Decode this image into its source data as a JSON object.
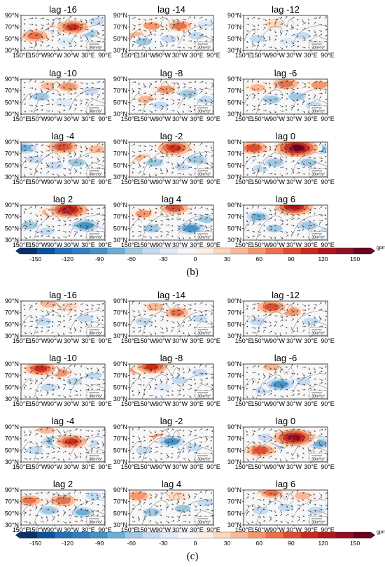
{
  "colorbar": {
    "ticks": [
      "-150",
      "-120",
      "-90",
      "-60",
      "-30",
      "0",
      "30",
      "60",
      "90",
      "120",
      "150"
    ],
    "unit": "gpm",
    "colors": [
      "#08306b",
      "#08519c",
      "#2171b5",
      "#2f7fc1",
      "#4292c6",
      "#6baed6",
      "#9ecae1",
      "#c6dbef",
      "#deebf7",
      "#f4f7fb",
      "#fdeee4",
      "#fcd6bd",
      "#f9b896",
      "#f4976b",
      "#ea7048",
      "#dd4b31",
      "#cb2a1f",
      "#b0171b",
      "#901024",
      "#67001f"
    ]
  },
  "panel_labels": [
    "(b)",
    "(c)"
  ],
  "reference_vector": "30m²/s²",
  "panels": [
    {
      "label": "(b)",
      "maps": [
        {
          "title": "lag -16"
        },
        {
          "title": "lag -14"
        },
        {
          "title": "lag -12"
        },
        {
          "title": "lag -10"
        },
        {
          "title": "lag -8"
        },
        {
          "title": "lag -6"
        },
        {
          "title": "lag -4"
        },
        {
          "title": "lag -2"
        },
        {
          "title": "lag 0"
        },
        {
          "title": "lag 2"
        },
        {
          "title": "lag 4"
        },
        {
          "title": "lag 6"
        }
      ]
    },
    {
      "label": "(c)",
      "maps": [
        {
          "title": "lag -16"
        },
        {
          "title": "lag -14"
        },
        {
          "title": "lag -12"
        },
        {
          "title": "lag -10"
        },
        {
          "title": "lag -8"
        },
        {
          "title": "lag -6"
        },
        {
          "title": "lag -4"
        },
        {
          "title": "lag -2"
        },
        {
          "title": "lag 0"
        },
        {
          "title": "lag 2"
        },
        {
          "title": "lag 4"
        },
        {
          "title": "lag 6"
        }
      ]
    }
  ],
  "chart_data": {
    "type": "heatmap",
    "panels": [
      "(b)",
      "(c)"
    ],
    "lags": [
      -16,
      -14,
      -12,
      -10,
      -8,
      -6,
      -4,
      -2,
      0,
      2,
      4,
      6
    ],
    "latitude_ticks": [
      "30°N",
      "50°N",
      "70°N",
      "90°N"
    ],
    "longitude_ticks": [
      "150°E",
      "150°W",
      "90°W",
      "30°W",
      "30°E",
      "90°E"
    ],
    "colorbar_range": [
      -165,
      165
    ],
    "colorbar_ticks": [
      -150,
      -120,
      -90,
      -60,
      -30,
      0,
      30,
      60,
      90,
      120,
      150
    ],
    "units": "gpm",
    "lat_range": [
      30,
      90
    ],
    "lon_range": [
      150,
      450
    ],
    "anomaly_centers": {
      "b": [
        [
          {
            "lon": 335,
            "lat": 70,
            "v": 100
          },
          {
            "lon": 200,
            "lat": 55,
            "v": 80
          },
          {
            "lon": 280,
            "lat": 70,
            "v": 40
          },
          {
            "lon": 390,
            "lat": 60,
            "v": -60
          },
          {
            "lon": 240,
            "lat": 60,
            "v": -40
          },
          {
            "lon": 420,
            "lat": 80,
            "v": -40
          },
          {
            "lon": 310,
            "lat": 45,
            "v": -30
          }
        ],
        [
          {
            "lon": 330,
            "lat": 72,
            "v": 70
          },
          {
            "lon": 230,
            "lat": 72,
            "v": 50
          },
          {
            "lon": 175,
            "lat": 55,
            "v": 40
          },
          {
            "lon": 200,
            "lat": 45,
            "v": -50
          },
          {
            "lon": 290,
            "lat": 50,
            "v": -40
          },
          {
            "lon": 390,
            "lat": 55,
            "v": -40
          },
          {
            "lon": 420,
            "lat": 75,
            "v": -30
          }
        ],
        [
          {
            "lon": 260,
            "lat": 75,
            "v": 30
          },
          {
            "lon": 200,
            "lat": 50,
            "v": -45
          },
          {
            "lon": 360,
            "lat": 55,
            "v": -40
          },
          {
            "lon": 310,
            "lat": 45,
            "v": -30
          }
        ],
        [
          {
            "lon": 320,
            "lat": 77,
            "v": 60
          },
          {
            "lon": 250,
            "lat": 78,
            "v": 40
          },
          {
            "lon": 220,
            "lat": 60,
            "v": -55
          },
          {
            "lon": 400,
            "lat": 70,
            "v": -45
          },
          {
            "lon": 300,
            "lat": 50,
            "v": -30
          }
        ],
        [
          {
            "lon": 280,
            "lat": 72,
            "v": 55
          },
          {
            "lon": 210,
            "lat": 55,
            "v": 40
          },
          {
            "lon": 360,
            "lat": 65,
            "v": -60
          },
          {
            "lon": 260,
            "lat": 45,
            "v": -45
          },
          {
            "lon": 420,
            "lat": 55,
            "v": -35
          }
        ],
        [
          {
            "lon": 300,
            "lat": 82,
            "v": 80
          },
          {
            "lon": 420,
            "lat": 80,
            "v": 50
          },
          {
            "lon": 200,
            "lat": 75,
            "v": 45
          },
          {
            "lon": 250,
            "lat": 55,
            "v": -55
          },
          {
            "lon": 340,
            "lat": 60,
            "v": -55
          },
          {
            "lon": 400,
            "lat": 45,
            "v": -35
          }
        ],
        [
          {
            "lon": 300,
            "lat": 82,
            "v": 95
          },
          {
            "lon": 420,
            "lat": 78,
            "v": 40
          },
          {
            "lon": 160,
            "lat": 80,
            "v": -80
          },
          {
            "lon": 200,
            "lat": 60,
            "v": -45
          },
          {
            "lon": 350,
            "lat": 55,
            "v": -55
          },
          {
            "lon": 270,
            "lat": 50,
            "v": -35
          }
        ],
        [
          {
            "lon": 310,
            "lat": 80,
            "v": 110
          },
          {
            "lon": 200,
            "lat": 62,
            "v": 35
          },
          {
            "lon": 390,
            "lat": 60,
            "v": -65
          },
          {
            "lon": 240,
            "lat": 55,
            "v": -55
          },
          {
            "lon": 340,
            "lat": 48,
            "v": -40
          }
        ],
        [
          {
            "lon": 340,
            "lat": 80,
            "v": 150
          },
          {
            "lon": 185,
            "lat": 80,
            "v": 90
          },
          {
            "lon": 420,
            "lat": 78,
            "v": -70
          },
          {
            "lon": 260,
            "lat": 55,
            "v": -60
          },
          {
            "lon": 380,
            "lat": 55,
            "v": -55
          },
          {
            "lon": 210,
            "lat": 45,
            "v": -45
          }
        ],
        [
          {
            "lon": 320,
            "lat": 82,
            "v": 130
          },
          {
            "lon": 260,
            "lat": 78,
            "v": 60
          },
          {
            "lon": 180,
            "lat": 55,
            "v": -50
          },
          {
            "lon": 380,
            "lat": 55,
            "v": -90
          },
          {
            "lon": 240,
            "lat": 45,
            "v": -40
          }
        ],
        [
          {
            "lon": 310,
            "lat": 85,
            "v": 90
          },
          {
            "lon": 200,
            "lat": 75,
            "v": 50
          },
          {
            "lon": 230,
            "lat": 50,
            "v": -55
          },
          {
            "lon": 370,
            "lat": 50,
            "v": -90
          },
          {
            "lon": 420,
            "lat": 65,
            "v": -50
          }
        ],
        [
          {
            "lon": 330,
            "lat": 87,
            "v": 130
          },
          {
            "lon": 200,
            "lat": 70,
            "v": -70
          },
          {
            "lon": 260,
            "lat": 50,
            "v": -50
          },
          {
            "lon": 380,
            "lat": 55,
            "v": -60
          },
          {
            "lon": 430,
            "lat": 45,
            "v": -40
          }
        ]
      ],
      "c": [
        [
          {
            "lon": 250,
            "lat": 85,
            "v": 40
          },
          {
            "lon": 320,
            "lat": 80,
            "v": 30
          },
          {
            "lon": 230,
            "lat": 55,
            "v": -35
          },
          {
            "lon": 380,
            "lat": 60,
            "v": -35
          }
        ],
        [
          {
            "lon": 320,
            "lat": 70,
            "v": 70
          },
          {
            "lon": 240,
            "lat": 80,
            "v": 35
          },
          {
            "lon": 200,
            "lat": 55,
            "v": -35
          },
          {
            "lon": 400,
            "lat": 60,
            "v": -40
          }
        ],
        [
          {
            "lon": 250,
            "lat": 80,
            "v": 90
          },
          {
            "lon": 320,
            "lat": 72,
            "v": 60
          },
          {
            "lon": 200,
            "lat": 55,
            "v": -40
          },
          {
            "lon": 390,
            "lat": 55,
            "v": -45
          }
        ],
        [
          {
            "lon": 220,
            "lat": 82,
            "v": 100
          },
          {
            "lon": 290,
            "lat": 75,
            "v": 55
          },
          {
            "lon": 340,
            "lat": 60,
            "v": -45
          },
          {
            "lon": 410,
            "lat": 70,
            "v": -45
          },
          {
            "lon": 250,
            "lat": 50,
            "v": -35
          }
        ],
        [
          {
            "lon": 230,
            "lat": 85,
            "v": 100
          },
          {
            "lon": 180,
            "lat": 80,
            "v": 50
          },
          {
            "lon": 330,
            "lat": 62,
            "v": -45
          },
          {
            "lon": 400,
            "lat": 75,
            "v": -40
          },
          {
            "lon": 270,
            "lat": 50,
            "v": -30
          }
        ],
        [
          {
            "lon": 250,
            "lat": 85,
            "v": 40
          },
          {
            "lon": 280,
            "lat": 55,
            "v": -90
          },
          {
            "lon": 220,
            "lat": 45,
            "v": -40
          },
          {
            "lon": 360,
            "lat": 60,
            "v": -35
          }
        ],
        [
          {
            "lon": 330,
            "lat": 65,
            "v": 100
          },
          {
            "lon": 240,
            "lat": 85,
            "v": 40
          },
          {
            "lon": 270,
            "lat": 65,
            "v": -80
          },
          {
            "lon": 400,
            "lat": 62,
            "v": -45
          },
          {
            "lon": 200,
            "lat": 50,
            "v": -35
          }
        ],
        [
          {
            "lon": 260,
            "lat": 72,
            "v": 50
          },
          {
            "lon": 300,
            "lat": 65,
            "v": -85
          },
          {
            "lon": 200,
            "lat": 50,
            "v": -40
          },
          {
            "lon": 380,
            "lat": 55,
            "v": -40
          }
        ],
        [
          {
            "lon": 330,
            "lat": 72,
            "v": 140
          },
          {
            "lon": 210,
            "lat": 50,
            "v": 90
          },
          {
            "lon": 270,
            "lat": 58,
            "v": -60
          },
          {
            "lon": 420,
            "lat": 62,
            "v": -75
          },
          {
            "lon": 230,
            "lat": 72,
            "v": -40
          }
        ],
        [
          {
            "lon": 180,
            "lat": 72,
            "v": 70
          },
          {
            "lon": 300,
            "lat": 72,
            "v": 80
          },
          {
            "lon": 250,
            "lat": 55,
            "v": -60
          },
          {
            "lon": 370,
            "lat": 52,
            "v": -70
          },
          {
            "lon": 410,
            "lat": 80,
            "v": -45
          }
        ],
        [
          {
            "lon": 180,
            "lat": 80,
            "v": 65
          },
          {
            "lon": 320,
            "lat": 80,
            "v": 30
          },
          {
            "lon": 230,
            "lat": 52,
            "v": -55
          },
          {
            "lon": 340,
            "lat": 58,
            "v": -50
          },
          {
            "lon": 420,
            "lat": 68,
            "v": -45
          }
        ],
        [
          {
            "lon": 250,
            "lat": 85,
            "v": 70
          },
          {
            "lon": 360,
            "lat": 80,
            "v": 45
          },
          {
            "lon": 210,
            "lat": 55,
            "v": -35
          },
          {
            "lon": 300,
            "lat": 60,
            "v": -40
          },
          {
            "lon": 410,
            "lat": 55,
            "v": -35
          }
        ]
      ]
    }
  }
}
